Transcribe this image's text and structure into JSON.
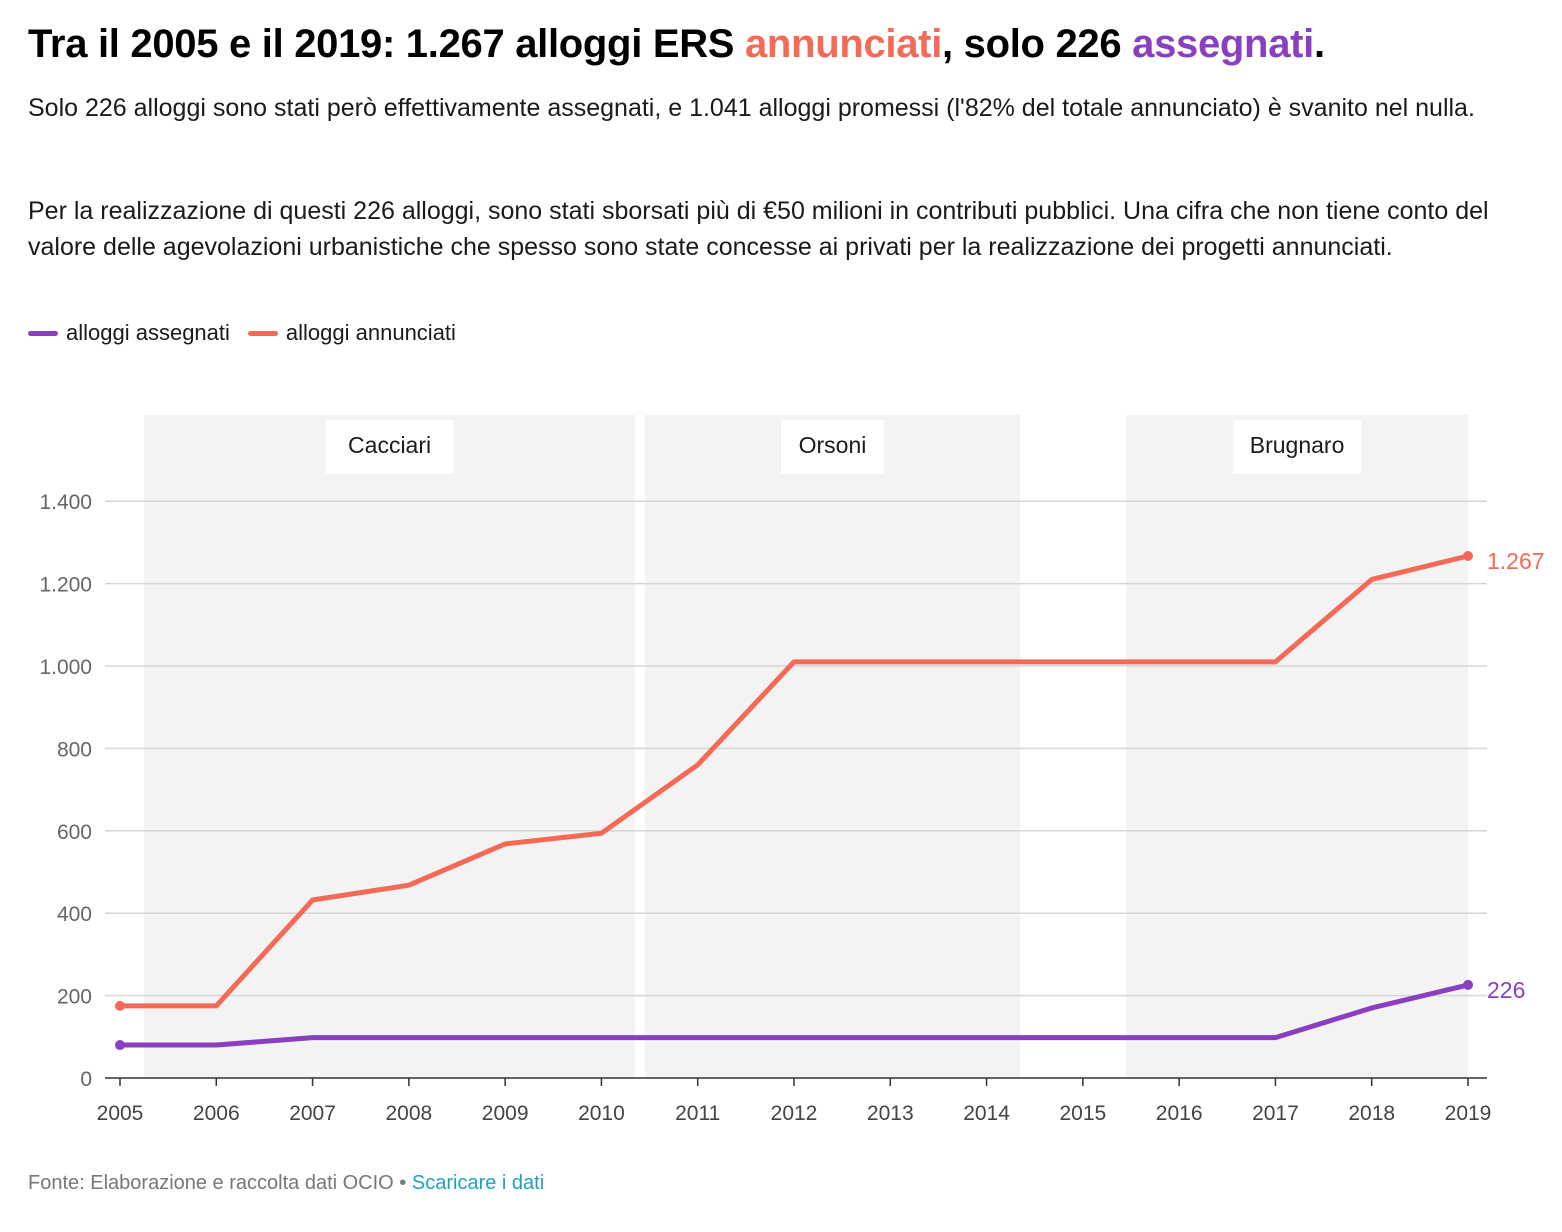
{
  "header": {
    "title_prefix": "Tra il 2005 e il 2019: 1.267 alloggi ERS ",
    "title_hl1": "annunciati",
    "title_mid": ", solo 226 ",
    "title_hl2": "assegnati",
    "title_end": ".",
    "desc1": "Solo 226 alloggi sono stati però effettivamente assegnati, e 1.041 alloggi promessi (l'82% del totale annunciato) è svanito nel nulla.",
    "desc2": "Per la realizzazione di questi 226 alloggi, sono stati sborsati più di €50 milioni in contributi pubblici. Una cifra che non tiene conto del valore delle agevolazioni urbanistiche che spesso sono state concesse ai privati per la realizzazione dei progetti annunciati."
  },
  "legend": {
    "assegnati": "alloggi assegnati",
    "annunciati": "alloggi annunciati"
  },
  "footer": {
    "source": "Fonte: Elaborazione e raccolta dati OCIO",
    "separator": " • ",
    "download": "Scaricare i dati"
  },
  "colors": {
    "annunciati": "#f56a57",
    "assegnati": "#8a3fc0",
    "band": "#f3f3f3",
    "grid": "#d6d6d6",
    "axis_text": "#666666"
  },
  "chart_data": {
    "type": "line",
    "x": [
      "2005",
      "2006",
      "2007",
      "2008",
      "2009",
      "2010",
      "2011",
      "2012",
      "2013",
      "2014",
      "2015",
      "2016",
      "2017",
      "2018",
      "2019"
    ],
    "ylim": [
      0,
      1500
    ],
    "yticks": [
      0,
      200,
      400,
      600,
      800,
      1000,
      1200,
      1400
    ],
    "ytick_labels": [
      "0",
      "200",
      "400",
      "600",
      "800",
      "1.000",
      "1.200",
      "1.400"
    ],
    "grid": true,
    "legend_position": "top-left",
    "series": [
      {
        "key": "assegnati",
        "name": "alloggi assegnati",
        "values": [
          80,
          80,
          98,
          98,
          98,
          98,
          98,
          98,
          98,
          98,
          98,
          98,
          98,
          170,
          226
        ],
        "end_label": "226"
      },
      {
        "key": "annunciati",
        "name": "alloggi annunciati",
        "values": [
          175,
          175,
          432,
          468,
          568,
          594,
          760,
          1010,
          1010,
          1010,
          1010,
          1010,
          1010,
          1210,
          1267
        ],
        "end_label": "1.267"
      }
    ],
    "annotations": [
      {
        "label": "Cacciari",
        "from": 2005.25,
        "to": 2010.35
      },
      {
        "label": "Orsoni",
        "from": 2010.45,
        "to": 2014.35
      },
      {
        "label": "Brugnaro",
        "from": 2015.45,
        "to": 2019.0
      }
    ]
  }
}
